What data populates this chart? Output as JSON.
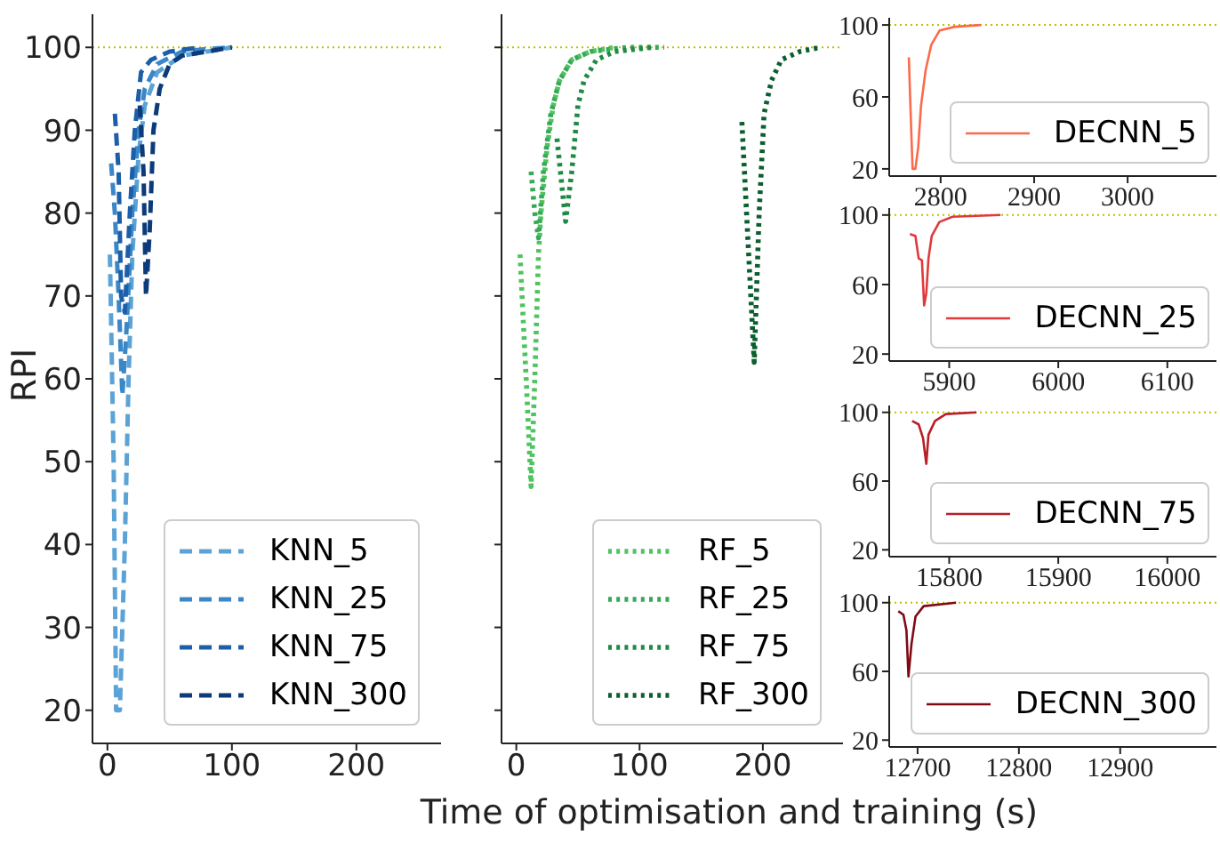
{
  "chart_data": [
    {
      "type": "line",
      "ylabel": "RPI",
      "xlim": [
        -12,
        268
      ],
      "xticks": [
        0,
        100,
        200
      ],
      "ylim": [
        16,
        104
      ],
      "yticks": [
        20,
        30,
        40,
        50,
        60,
        70,
        80,
        90,
        100
      ],
      "line_style": "dashed",
      "legend": "bottom right",
      "ref_lines": [
        {
          "axis": "y",
          "value": 100,
          "color": "#bfbf00",
          "line_style": "dotted"
        }
      ],
      "series": [
        {
          "name": "KNN_5",
          "color": "#5ba3d6",
          "x": [
            2,
            5,
            7,
            10,
            14,
            17,
            20,
            25,
            30,
            40,
            60,
            100
          ],
          "values": [
            75,
            50,
            20,
            20,
            40,
            60,
            75,
            87,
            93,
            97,
            99,
            100
          ]
        },
        {
          "name": "KNN_25",
          "color": "#3a87c8",
          "x": [
            3,
            6,
            9,
            12,
            15,
            20,
            25,
            30,
            40,
            60,
            80,
            100
          ],
          "values": [
            86,
            80,
            70,
            58,
            65,
            80,
            90,
            95,
            98,
            99.5,
            99.8,
            100
          ]
        },
        {
          "name": "KNN_75",
          "color": "#1c5fa8",
          "x": [
            6,
            9,
            11,
            14,
            18,
            22,
            27,
            35,
            50,
            75
          ],
          "values": [
            92,
            85,
            70,
            68,
            80,
            90,
            97,
            98.5,
            99.5,
            100
          ]
        },
        {
          "name": "KNN_300",
          "color": "#0d3b7a",
          "x": [
            26,
            29,
            31,
            34,
            37,
            42,
            50,
            60,
            80,
            100
          ],
          "values": [
            93,
            85,
            70,
            78,
            90,
            95,
            98,
            99,
            99.5,
            100
          ]
        }
      ]
    },
    {
      "type": "line",
      "xlabel": "Time of optimisation and training (s)",
      "xlim": [
        -12,
        265
      ],
      "xticks": [
        0,
        100,
        200
      ],
      "ylim": [
        16,
        104
      ],
      "yticks": [
        20,
        30,
        40,
        50,
        60,
        70,
        80,
        90,
        100
      ],
      "tick_labels": "x",
      "line_style": "dotted",
      "legend": "bottom right",
      "ref_lines": [
        {
          "axis": "y",
          "value": 100,
          "color": "#bfbf00",
          "line_style": "dotted"
        }
      ],
      "series": [
        {
          "name": "RF_5",
          "color": "#4fc35f",
          "x": [
            3,
            8,
            12,
            15,
            18,
            20,
            25,
            30,
            35,
            45,
            60,
            80
          ],
          "values": [
            75,
            60,
            47,
            60,
            75,
            80,
            88,
            93,
            96,
            98.5,
            99.5,
            100
          ]
        },
        {
          "name": "RF_25",
          "color": "#36a956",
          "x": [
            12,
            15,
            18,
            22,
            28,
            35,
            45,
            60,
            90,
            120
          ],
          "values": [
            85,
            80,
            77,
            85,
            92,
            96,
            98.5,
            99.5,
            100,
            100
          ]
        },
        {
          "name": "RF_75",
          "color": "#1f8a45",
          "x": [
            33,
            40,
            45,
            50,
            55,
            65,
            80,
            110
          ],
          "values": [
            89,
            79,
            85,
            93,
            96,
            98.5,
            99.5,
            100
          ]
        },
        {
          "name": "RF_300",
          "color": "#0b5e2e",
          "x": [
            183,
            193,
            197,
            201,
            207,
            215,
            230,
            247
          ],
          "values": [
            91,
            62,
            80,
            92,
            96,
            98.5,
            99.5,
            100
          ]
        }
      ]
    },
    {
      "type": "line",
      "xlim": [
        2745,
        3095
      ],
      "xticks": [
        2800,
        2900,
        3000
      ],
      "ylim": [
        16,
        104
      ],
      "yticks": [
        20,
        60,
        100
      ],
      "line_style": "solid",
      "legend": "bottom right",
      "ref_lines": [
        {
          "axis": "y",
          "value": 100,
          "color": "#bfbf00",
          "line_style": "dotted"
        }
      ],
      "series": [
        {
          "name": "DECNN_5",
          "color": "#fb6a4a",
          "x": [
            2766,
            2768,
            2770,
            2773,
            2776,
            2779,
            2784,
            2790,
            2799,
            2815,
            2843
          ],
          "values": [
            82,
            50,
            20,
            20,
            32,
            55,
            75,
            89,
            97,
            99,
            100
          ]
        }
      ]
    },
    {
      "type": "line",
      "xlim": [
        5845,
        6145
      ],
      "xticks": [
        5900,
        6000,
        6100
      ],
      "ylim": [
        16,
        104
      ],
      "yticks": [
        20,
        60,
        100
      ],
      "line_style": "solid",
      "legend": "bottom right",
      "ref_lines": [
        {
          "axis": "y",
          "value": 100,
          "color": "#bfbf00",
          "line_style": "dotted"
        }
      ],
      "series": [
        {
          "name": "DECNN_25",
          "color": "#e0393a",
          "x": [
            5864,
            5869,
            5872,
            5875,
            5877,
            5879,
            5881,
            5884,
            5891,
            5903,
            5947
          ],
          "values": [
            89,
            88,
            75,
            74,
            48,
            55,
            75,
            88,
            96,
            99,
            100
          ]
        }
      ]
    },
    {
      "type": "line",
      "xlim": [
        15745,
        16045
      ],
      "xticks": [
        15800,
        15900,
        16000
      ],
      "ylim": [
        16,
        104
      ],
      "yticks": [
        20,
        60,
        100
      ],
      "line_style": "solid",
      "legend": "bottom right",
      "ref_lines": [
        {
          "axis": "y",
          "value": 100,
          "color": "#bfbf00",
          "line_style": "dotted"
        }
      ],
      "series": [
        {
          "name": "DECNN_75",
          "color": "#b81f28",
          "x": [
            15766,
            15772,
            15776,
            15779,
            15781,
            15787,
            15797,
            15825
          ],
          "values": [
            95,
            93,
            85,
            70,
            87,
            95,
            99,
            100
          ]
        }
      ]
    },
    {
      "type": "line",
      "xlim": [
        12672,
        12995
      ],
      "xticks": [
        12700,
        12800,
        12900
      ],
      "ylim": [
        16,
        104
      ],
      "yticks": [
        20,
        60,
        100
      ],
      "line_style": "solid",
      "legend": "bottom right",
      "ref_lines": [
        {
          "axis": "y",
          "value": 100,
          "color": "#bfbf00",
          "line_style": "dotted"
        }
      ],
      "series": [
        {
          "name": "DECNN_300",
          "color": "#7f0a14",
          "x": [
            12681,
            12686,
            12689,
            12691,
            12694,
            12698,
            12706,
            12738
          ],
          "values": [
            95,
            93,
            84,
            57,
            76,
            92,
            98,
            100
          ]
        }
      ]
    }
  ]
}
